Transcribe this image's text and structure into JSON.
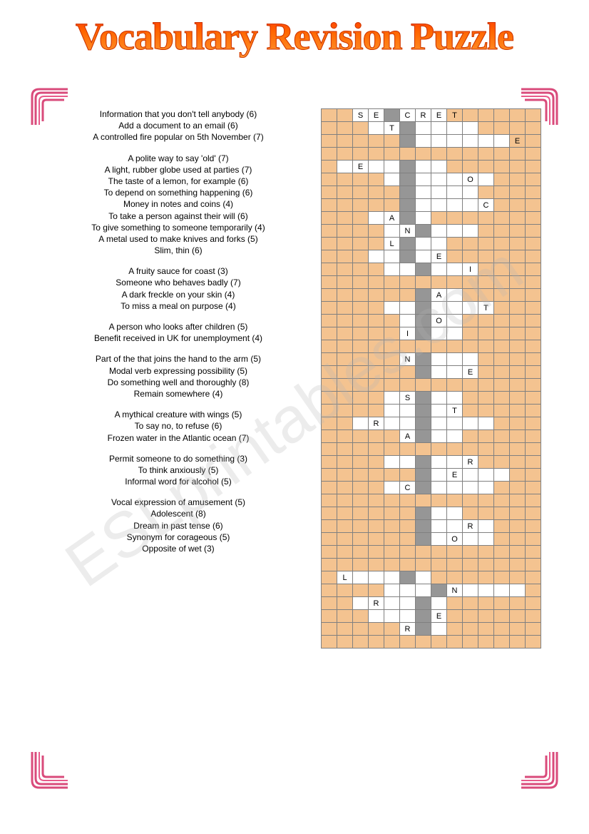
{
  "title": "Vocabulary Revision Puzzle",
  "watermark": "ESLprintables.com",
  "colors": {
    "title_gradient_top": "#ff3300",
    "title_gradient_bottom": "#ff9933",
    "grid_fill": "#f4c390",
    "grid_white": "#ffffff",
    "grid_grey": "#969696",
    "grid_border": "#808080",
    "corner_outer": "#d94b7b",
    "corner_inner": "#e85a8a"
  },
  "clue_groups": [
    [
      "Information that you don't tell anybody (6)",
      "Add a document to an email (6)",
      "A controlled fire popular on 5th November (7)"
    ],
    [
      "A polite way to say 'old' (7)",
      "A light, rubber globe used at parties (7)",
      "The taste of a lemon, for example (6)",
      "To depend on something happening (6)",
      "Money in notes and coins (4)",
      "To take a person against their will (6)",
      "To give something to someone temporarily (4)",
      "A metal used to make knives and forks (5)",
      "Slim, thin (6)"
    ],
    [
      "A fruity sauce for coast (3)",
      "Someone who behaves badly (7)",
      "A dark freckle on your skin (4)",
      "To miss a meal on purpose (4)"
    ],
    [
      "A person who looks after children (5)",
      "Benefit received in UK for unemployment (4)"
    ],
    [
      "Part of the that joins the hand to the arm (5)",
      "Modal verb expressing possibility (5)",
      "Do something well and thoroughly (8)",
      "Remain somewhere (4)"
    ],
    [
      "A mythical creature with wings (5)",
      "To say no, to refuse (6)",
      "Frozen water in the Atlantic ocean (7)"
    ],
    [
      "Permit someone to do something (3)",
      "To think anxiously (5)",
      "Informal word for alcohol (5)"
    ],
    [
      "Vocal expression of amusement (5)",
      "Adolescent (8)",
      "Dream in past tense (6)",
      "Synonym for corageous (5)",
      "Opposite of wet (3)"
    ]
  ],
  "grid": {
    "cols": 14,
    "rows": [
      {
        "cells": "ffwwgwwwff",
        "letters": {
          "2": "S",
          "3": "E",
          "5": "C",
          "6": "R",
          "7": "E",
          "8": "T"
        },
        "off": 2
      },
      {
        "cells": "fffwwgwwwwff",
        "letters": {
          "4": "T"
        },
        "off": 1
      },
      {
        "cells": "fffffgwwwwwwf",
        "letters": {
          "12": "E"
        },
        "off": 0
      },
      {
        "cells": "ffffffffffffff",
        "off": 0
      },
      {
        "cells": "fwwwwgwwfffff",
        "letters": {
          "2": "E"
        },
        "off": 0
      },
      {
        "cells": "ffffwgwwwwwff",
        "letters": {
          "9": "O"
        },
        "off": 0
      },
      {
        "cells": "fffffgwwwwfff",
        "off": 0
      },
      {
        "cells": "fffffgwwwwwff",
        "letters": {
          "10": "C"
        },
        "off": 0
      },
      {
        "cells": "fffwwgwffffff",
        "letters": {
          "4": "A"
        },
        "off": 0
      },
      {
        "cells": "ffffwwgwwwfff",
        "letters": {
          "5": "N"
        },
        "off": 0
      },
      {
        "cells": "ffffwgwwfffff",
        "letters": {
          "4": "L"
        },
        "off": 0
      },
      {
        "cells": "fffwwgwwfffff",
        "letters": {
          "7": "E"
        },
        "off": 0
      },
      {
        "cells": "ffffwwgwwwfff",
        "letters": {
          "9": "I"
        },
        "off": 0
      },
      {
        "cells": "ffffffffffffff",
        "off": 0
      },
      {
        "cells": "ffffffgwwfffff",
        "letters": {
          "7": "A"
        },
        "off": 0
      },
      {
        "cells": "ffffwwgwwwwfff",
        "letters": {
          "10": "T"
        },
        "off": 0
      },
      {
        "cells": "fffffwgwwfffff",
        "letters": {
          "7": "O"
        },
        "off": 0
      },
      {
        "cells": "fffffwgwwfffff",
        "letters": {
          "5": "I"
        },
        "off": 0
      },
      {
        "cells": "ffffffffffffff",
        "off": 0
      },
      {
        "cells": "fffffwgwwwffff",
        "letters": {
          "5": "N"
        },
        "off": 0
      },
      {
        "cells": "ffffffgwwwffff",
        "letters": {
          "9": "E"
        },
        "off": 0
      },
      {
        "cells": "ffffffffffffff",
        "off": 0
      },
      {
        "cells": "ffffwwgwwfffff",
        "letters": {
          "5": "S"
        },
        "off": 0
      },
      {
        "cells": "ffffwwgwwfffff",
        "letters": {
          "8": "T"
        },
        "off": 0
      },
      {
        "cells": "ffwwwwgwwwwfff",
        "letters": {
          "3": "R"
        },
        "off": 0
      },
      {
        "cells": "fffffwgwwfffff",
        "letters": {
          "5": "A"
        },
        "off": 0
      },
      {
        "cells": "ffffffffffffff",
        "off": 0
      },
      {
        "cells": "ffffwwgwwwffff",
        "letters": {
          "9": "R"
        },
        "off": 0
      },
      {
        "cells": "ffffffgwwwwwff",
        "letters": {
          "8": "E"
        },
        "off": 0
      },
      {
        "cells": "ffffwwgwwwwfff",
        "letters": {
          "5": "C"
        },
        "off": 0
      },
      {
        "cells": "ffffffffffffff",
        "off": 0
      },
      {
        "cells": "ffffffgwwfffff",
        "off": 0
      },
      {
        "cells": "ffffffgwwwwfff",
        "letters": {
          "9": "R"
        },
        "off": 0
      },
      {
        "cells": "ffffffgwwwwfff",
        "letters": {
          "8": "O"
        },
        "off": 0
      },
      {
        "cells": "ffffffffffffff",
        "off": 0
      },
      {
        "cells": "ffffffffffffff",
        "off": 0
      },
      {
        "cells": "fwwwwgwffffff",
        "letters": {
          "1": "L"
        },
        "off": 0
      },
      {
        "cells": "ffffwwwgwwwwwf",
        "letters": {
          "8": "N"
        },
        "off": 0
      },
      {
        "cells": "ffwwwwgwfffff",
        "letters": {
          "3": "R"
        },
        "off": 0
      },
      {
        "cells": "fffwwwgwfffff",
        "letters": {
          "7": "E"
        },
        "off": 0
      },
      {
        "cells": "fffffwgwfffff",
        "letters": {
          "5": "R"
        },
        "off": 0
      },
      {
        "cells": "ffffffffffffff",
        "off": 0
      }
    ]
  }
}
